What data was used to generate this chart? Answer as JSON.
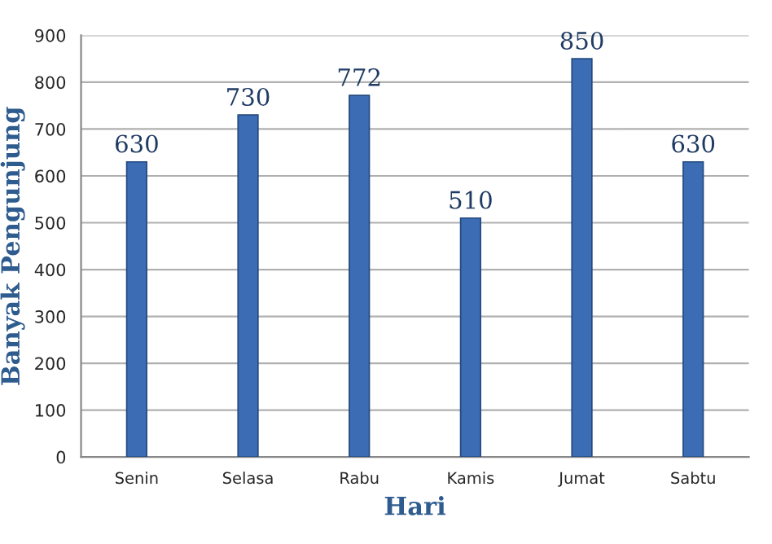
{
  "chart_data": {
    "type": "bar",
    "xlabel": "Hari",
    "ylabel": "Banyak Pengunjung",
    "categories": [
      "Senin",
      "Selasa",
      "Rabu",
      "Kamis",
      "Jumat",
      "Sabtu"
    ],
    "values": [
      630,
      730,
      772,
      510,
      850,
      630
    ],
    "color": "#3b6cb4",
    "ylim": [
      0,
      900
    ],
    "yticks": [
      0,
      100,
      200,
      300,
      400,
      500,
      600,
      700,
      800,
      900
    ],
    "grid": "y",
    "data_labels": true,
    "legend": false
  }
}
